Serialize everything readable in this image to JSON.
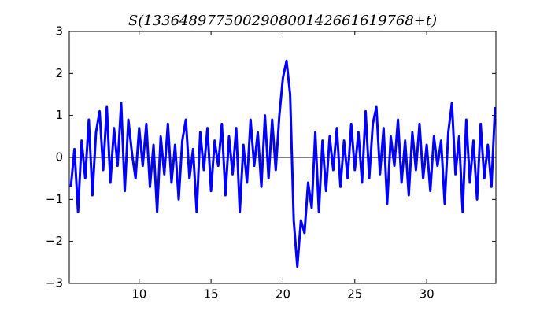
{
  "chart_data": {
    "type": "line",
    "title": "S(133648977500290800142661619768+t)",
    "x": [
      5.25,
      5.5,
      5.75,
      6,
      6.25,
      6.5,
      6.75,
      7,
      7.25,
      7.5,
      7.75,
      8,
      8.25,
      8.5,
      8.75,
      9,
      9.25,
      9.5,
      9.75,
      10,
      10.25,
      10.5,
      10.75,
      11,
      11.25,
      11.5,
      11.75,
      12,
      12.25,
      12.5,
      12.75,
      13,
      13.25,
      13.5,
      13.75,
      14,
      14.25,
      14.5,
      14.75,
      15,
      15.25,
      15.5,
      15.75,
      16,
      16.25,
      16.5,
      16.75,
      17,
      17.25,
      17.5,
      17.75,
      18,
      18.25,
      18.5,
      18.75,
      19,
      19.25,
      19.5,
      19.75,
      20,
      20.25,
      20.5,
      20.75,
      21,
      21.25,
      21.5,
      21.75,
      22,
      22.25,
      22.5,
      22.75,
      23,
      23.25,
      23.5,
      23.75,
      24,
      24.25,
      24.5,
      24.75,
      25,
      25.25,
      25.5,
      25.75,
      26,
      26.25,
      26.5,
      26.75,
      27,
      27.25,
      27.5,
      27.75,
      28,
      28.25,
      28.5,
      28.75,
      29,
      29.25,
      29.5,
      29.75,
      30,
      30.25,
      30.5,
      30.75,
      31,
      31.25,
      31.5,
      31.75,
      32,
      32.25,
      32.5,
      32.75,
      33,
      33.25,
      33.5,
      33.75,
      34,
      34.25,
      34.5,
      34.75
    ],
    "values": [
      -0.7,
      0.2,
      -1.3,
      0.4,
      -0.5,
      0.9,
      -0.9,
      0.6,
      1.1,
      -0.3,
      1.2,
      -0.6,
      0.7,
      -0.2,
      1.3,
      -0.8,
      0.9,
      0.1,
      -0.5,
      0.7,
      -0.2,
      0.8,
      -0.7,
      0.3,
      -1.3,
      0.5,
      -0.4,
      0.8,
      -0.6,
      0.3,
      -1.0,
      0.4,
      0.9,
      -0.5,
      0.2,
      -1.3,
      0.6,
      -0.3,
      0.7,
      -0.8,
      0.4,
      -0.2,
      0.8,
      -0.9,
      0.5,
      -0.4,
      0.7,
      -1.3,
      0.3,
      -0.6,
      0.9,
      -0.2,
      0.6,
      -0.7,
      1.0,
      -0.5,
      0.9,
      -0.3,
      1.0,
      1.9,
      2.3,
      1.5,
      -1.5,
      -2.6,
      -1.5,
      -1.8,
      -0.6,
      -1.2,
      0.6,
      -1.3,
      0.4,
      -0.8,
      0.5,
      -0.3,
      0.7,
      -0.7,
      0.4,
      -0.5,
      0.8,
      -0.3,
      0.6,
      -0.6,
      1.1,
      -0.5,
      0.8,
      1.2,
      -0.4,
      0.7,
      -1.1,
      0.5,
      -0.2,
      0.9,
      -0.6,
      0.4,
      -0.9,
      0.6,
      -0.3,
      0.8,
      -0.5,
      0.3,
      -0.8,
      0.5,
      -0.2,
      0.4,
      -1.1,
      0.6,
      1.3,
      -0.4,
      0.5,
      -1.3,
      0.9,
      -0.6,
      0.4,
      -1.0,
      0.8,
      -0.5,
      0.3,
      -0.7,
      1.2
    ],
    "color": "#0000ff",
    "hline": 0,
    "xlim": [
      5.14,
      34.81
    ],
    "ylim": [
      -3,
      3
    ],
    "xticks": [
      10,
      15,
      20,
      25,
      30
    ],
    "yticks": [
      {
        "value": -3,
        "label": "−3"
      },
      {
        "value": -2,
        "label": "−2"
      },
      {
        "value": -1,
        "label": "−1"
      },
      0,
      1,
      2,
      3
    ]
  }
}
